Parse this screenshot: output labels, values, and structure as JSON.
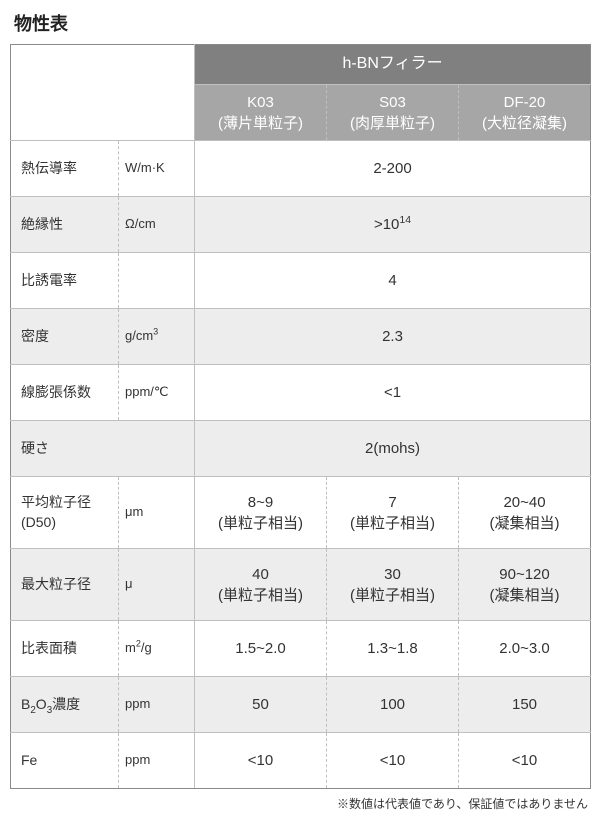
{
  "title": "物性表",
  "header": {
    "group_label": "h-BNフィラー",
    "columns": [
      {
        "code": "K03",
        "desc": "(薄片単粒子)"
      },
      {
        "code": "S03",
        "desc": "(肉厚単粒子)"
      },
      {
        "code": "DF-20",
        "desc": "(大粒径凝集)"
      }
    ]
  },
  "rows": [
    {
      "prop": "熱伝導率",
      "unit": "W/m·K",
      "merged": "2-200",
      "bg": "white",
      "h": "single"
    },
    {
      "prop": "絶縁性",
      "unit": "Ω/cm",
      "merged_html": ">10<sup>14</sup>",
      "bg": "grey",
      "h": "single"
    },
    {
      "prop": "比誘電率",
      "unit": "",
      "merged": "4",
      "bg": "white",
      "h": "single"
    },
    {
      "prop": "密度",
      "unit_html": "g/cm<sup>3</sup>",
      "merged": "2.3",
      "bg": "grey",
      "h": "single"
    },
    {
      "prop": "線膨張係数",
      "unit": "ppm/℃",
      "merged": "<1",
      "bg": "white",
      "h": "single"
    },
    {
      "prop": "硬さ",
      "unit": "",
      "merged": "2(mohs)",
      "bg": "grey",
      "h": "single",
      "unit_merge_prop": true
    },
    {
      "prop_html": "平均粒子径<br>(D50)",
      "unit": "μm",
      "vals_html": [
        "8~9<br>(単粒子相当)",
        "7<br>(単粒子相当)",
        "20~40<br>(凝集相当)"
      ],
      "bg": "white",
      "h": "double"
    },
    {
      "prop": "最大粒子径",
      "unit": "μ",
      "vals_html": [
        "40<br>(単粒子相当)",
        "30<br>(単粒子相当)",
        "90~120<br>(凝集相当)"
      ],
      "bg": "grey",
      "h": "double"
    },
    {
      "prop": "比表面積",
      "unit_html": "m<sup>2</sup>/g",
      "vals": [
        "1.5~2.0",
        "1.3~1.8",
        "2.0~3.0"
      ],
      "bg": "white",
      "h": "single"
    },
    {
      "prop_html": "B<sub>2</sub>O<sub>3</sub>濃度",
      "unit": "ppm",
      "vals": [
        "50",
        "100",
        "150"
      ],
      "bg": "grey",
      "h": "single"
    },
    {
      "prop": "Fe",
      "unit": "ppm",
      "vals": [
        "<10",
        "<10",
        "<10"
      ],
      "bg": "white",
      "h": "single"
    }
  ],
  "footnote": "※数値は代表値であり、保証値ではありません",
  "colors": {
    "outer_border": "#8a8a8a",
    "inner_border": "#bfbfbf",
    "head_dark_bg": "#808080",
    "head_mid_bg": "#a6a6a6",
    "grey_row_bg": "#ededed",
    "text": "#333333",
    "head_text": "#ffffff"
  },
  "font_sizes": {
    "title": 18,
    "cell": 14,
    "unit": 13,
    "val": 15,
    "footnote": 12
  }
}
